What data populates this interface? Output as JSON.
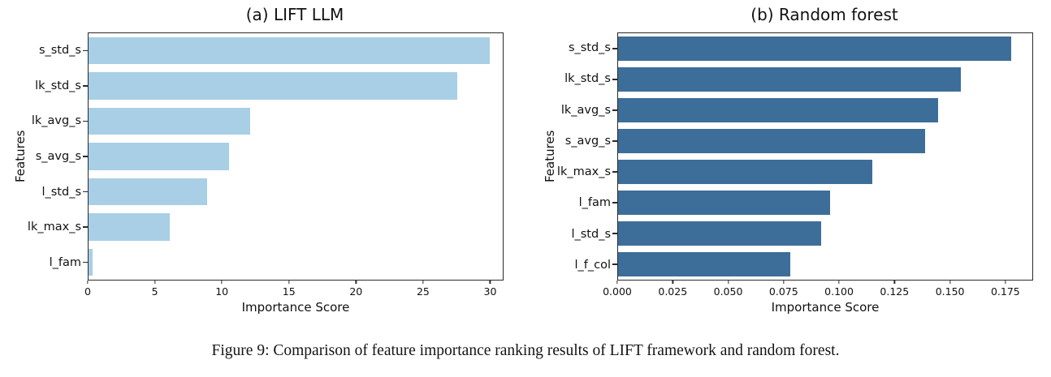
{
  "figure": {
    "caption": "Figure 9: Comparison of feature importance ranking results of LIFT framework and random forest."
  },
  "chart_data": [
    {
      "type": "bar",
      "orientation": "horizontal",
      "title": "(a) LIFT LLM",
      "xlabel": "Importance Score",
      "ylabel": "Features",
      "categories": [
        "s_std_s",
        "lk_std_s",
        "lk_avg_s",
        "s_avg_s",
        "l_std_s",
        "lk_max_s",
        "l_fam"
      ],
      "values": [
        30.0,
        27.6,
        12.1,
        10.5,
        8.9,
        6.1,
        0.3
      ],
      "xlim": [
        0,
        31
      ],
      "xticks": [
        0,
        5,
        10,
        15,
        20,
        25,
        30
      ],
      "xtick_decimals": 0,
      "bar_color": "#a8cfe5",
      "grid": false,
      "legend": "none"
    },
    {
      "type": "bar",
      "orientation": "horizontal",
      "title": "(b) Random forest",
      "xlabel": "Importance Score",
      "ylabel": "Features",
      "categories": [
        "s_std_s",
        "lk_std_s",
        "lk_avg_s",
        "s_avg_s",
        "lk_max_s",
        "l_fam",
        "l_std_s",
        "l_f_col"
      ],
      "values": [
        0.178,
        0.155,
        0.145,
        0.139,
        0.115,
        0.096,
        0.092,
        0.078
      ],
      "xlim": [
        0,
        0.1875
      ],
      "xticks": [
        0.0,
        0.025,
        0.05,
        0.075,
        0.1,
        0.125,
        0.15,
        0.175
      ],
      "xtick_decimals": 3,
      "bar_color": "#3d6e99",
      "grid": false,
      "legend": "none"
    }
  ]
}
